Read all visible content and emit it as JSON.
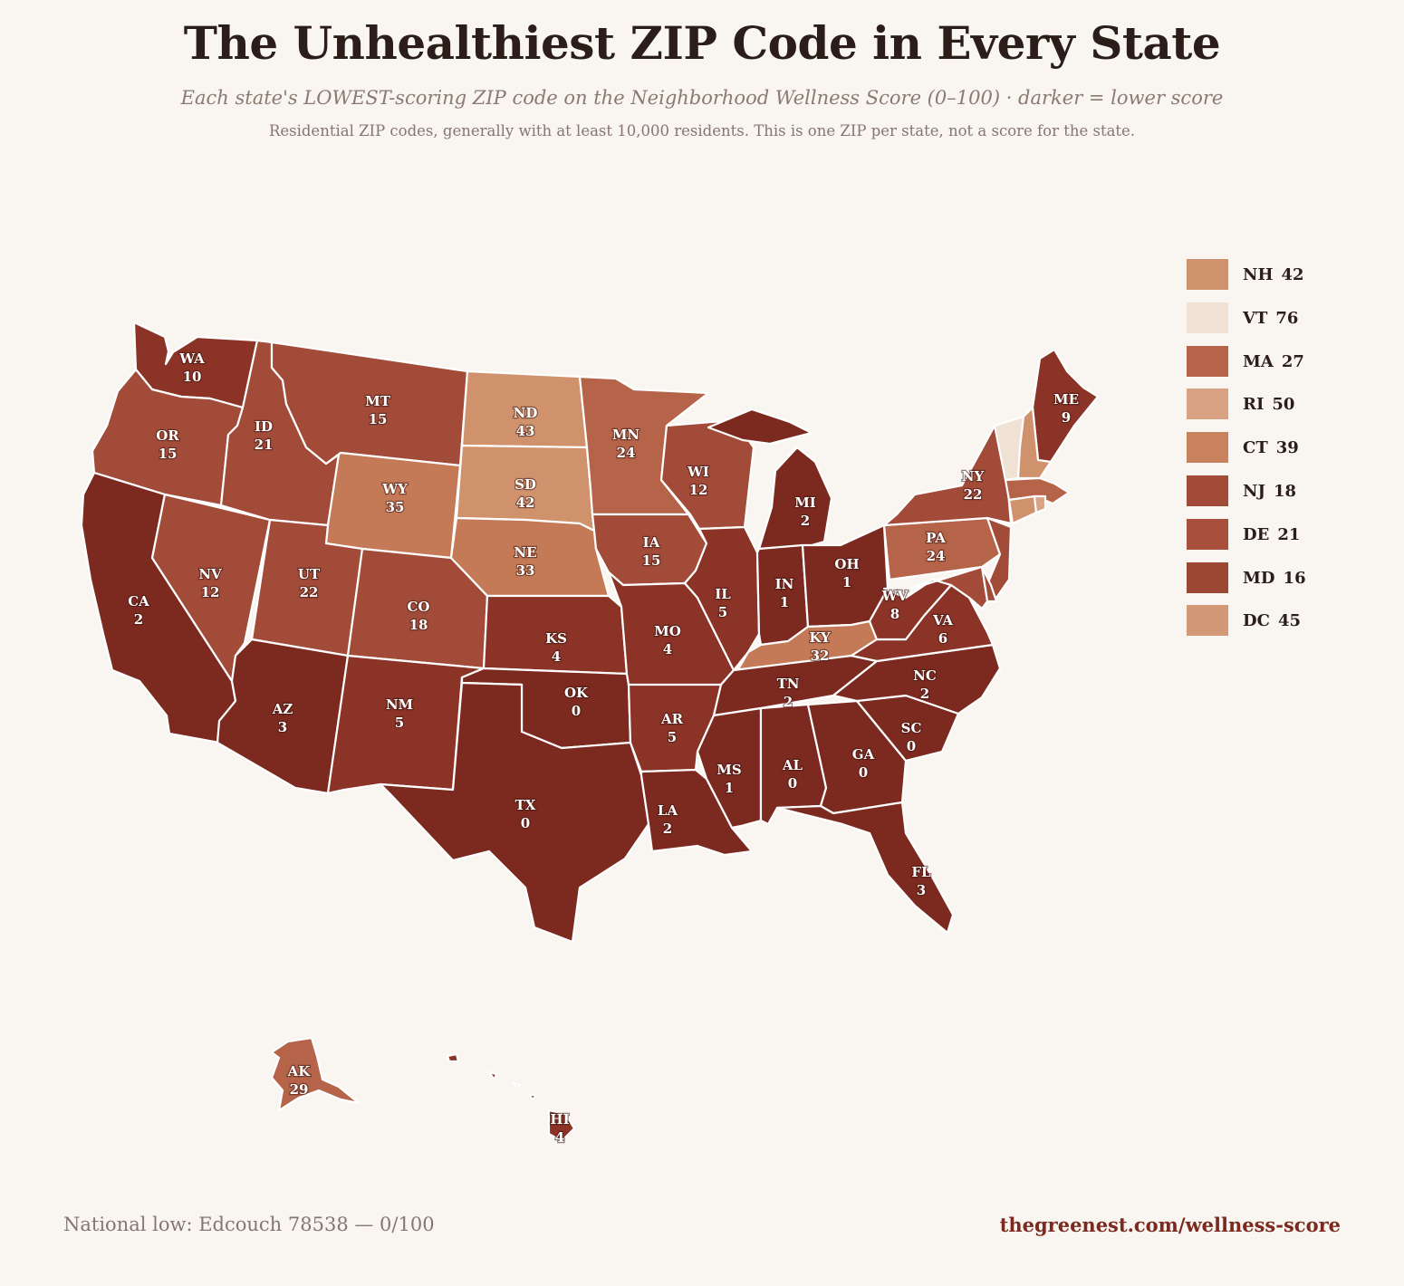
{
  "header": {
    "title": "The Unhealthiest ZIP Code in Every State",
    "subtitle": "Each state's LOWEST-scoring ZIP code on the Neighborhood Wellness Score (0–100) · darker = lower score",
    "note": "Residential ZIP codes, generally with at least 10,000 residents. This is one ZIP per state, not a score for the state."
  },
  "colors": {
    "background": "#f9f5f1",
    "state_border": "#ffffff",
    "scale": [
      "#7c2a1f",
      "#8a3326",
      "#a14b38",
      "#b56449",
      "#c47a56",
      "#d0926c",
      "#d9a383",
      "#efe1d3"
    ]
  },
  "states": [
    {
      "abbr": "WA",
      "score": "10"
    },
    {
      "abbr": "OR",
      "score": "15"
    },
    {
      "abbr": "CA",
      "score": "2"
    },
    {
      "abbr": "NV",
      "score": "12"
    },
    {
      "abbr": "ID",
      "score": "21"
    },
    {
      "abbr": "MT",
      "score": "15"
    },
    {
      "abbr": "WY",
      "score": "35"
    },
    {
      "abbr": "UT",
      "score": "22"
    },
    {
      "abbr": "AZ",
      "score": "3"
    },
    {
      "abbr": "CO",
      "score": "18"
    },
    {
      "abbr": "NM",
      "score": "5"
    },
    {
      "abbr": "ND",
      "score": "43"
    },
    {
      "abbr": "SD",
      "score": "42"
    },
    {
      "abbr": "NE",
      "score": "33"
    },
    {
      "abbr": "KS",
      "score": "4"
    },
    {
      "abbr": "OK",
      "score": "0"
    },
    {
      "abbr": "TX",
      "score": "0"
    },
    {
      "abbr": "MN",
      "score": "24"
    },
    {
      "abbr": "IA",
      "score": "15"
    },
    {
      "abbr": "MO",
      "score": "4"
    },
    {
      "abbr": "AR",
      "score": "5"
    },
    {
      "abbr": "LA",
      "score": "2"
    },
    {
      "abbr": "WI",
      "score": "12"
    },
    {
      "abbr": "IL",
      "score": "5"
    },
    {
      "abbr": "MI",
      "score": "2"
    },
    {
      "abbr": "IN",
      "score": "1"
    },
    {
      "abbr": "OH",
      "score": "1"
    },
    {
      "abbr": "KY",
      "score": "32"
    },
    {
      "abbr": "TN",
      "score": "2"
    },
    {
      "abbr": "MS",
      "score": "1"
    },
    {
      "abbr": "AL",
      "score": "0"
    },
    {
      "abbr": "GA",
      "score": "0"
    },
    {
      "abbr": "FL",
      "score": "3"
    },
    {
      "abbr": "SC",
      "score": "0"
    },
    {
      "abbr": "NC",
      "score": "2"
    },
    {
      "abbr": "VA",
      "score": "6"
    },
    {
      "abbr": "WV",
      "score": "8"
    },
    {
      "abbr": "PA",
      "score": "24"
    },
    {
      "abbr": "NY",
      "score": "22"
    },
    {
      "abbr": "ME",
      "score": "9"
    },
    {
      "abbr": "AK",
      "score": "29"
    },
    {
      "abbr": "HI",
      "score": "4"
    }
  ],
  "legend": [
    {
      "abbr": "NH",
      "score": "42",
      "color": "#d0926c"
    },
    {
      "abbr": "VT",
      "score": "76",
      "color": "#efe1d3"
    },
    {
      "abbr": "MA",
      "score": "27",
      "color": "#b56449"
    },
    {
      "abbr": "RI",
      "score": "50",
      "color": "#d9a383"
    },
    {
      "abbr": "CT",
      "score": "39",
      "color": "#c9825e"
    },
    {
      "abbr": "NJ",
      "score": "18",
      "color": "#a14b38"
    },
    {
      "abbr": "DE",
      "score": "21",
      "color": "#a8503b"
    },
    {
      "abbr": "MD",
      "score": "16",
      "color": "#9c4634"
    },
    {
      "abbr": "DC",
      "score": "45",
      "color": "#d39877"
    }
  ],
  "footer": {
    "left": "National low: Edcouch 78538 — 0/100",
    "right": "thegreenest.com/wellness-score"
  }
}
